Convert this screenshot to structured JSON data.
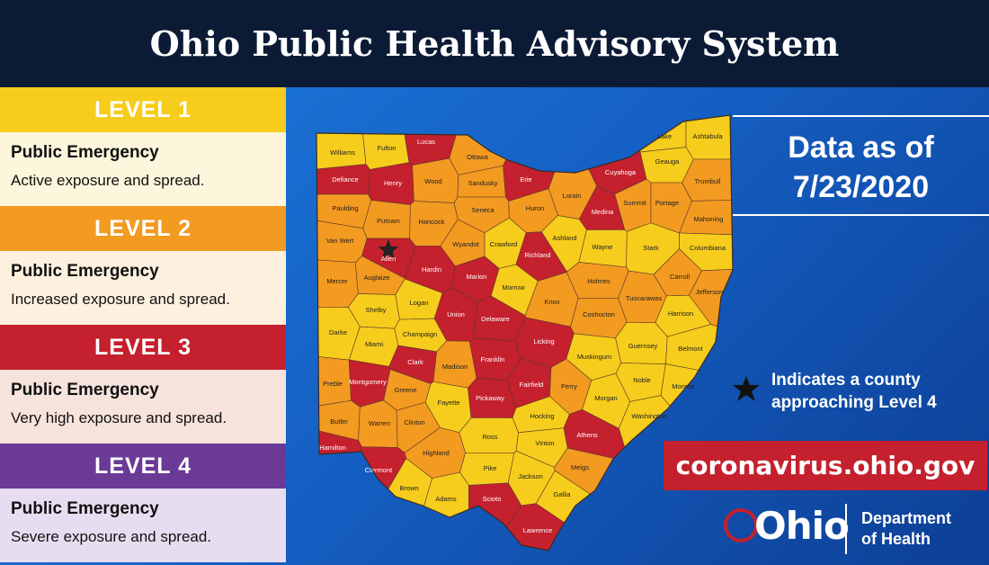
{
  "title": "Ohio Public Health Advisory System",
  "levels": [
    {
      "label": "LEVEL 1",
      "heading": "Public Emergency",
      "description": "Active exposure and spread.",
      "color": "#f6cd1c",
      "tint": "#fdf6dc"
    },
    {
      "label": "LEVEL 2",
      "heading": "Public Emergency",
      "description": "Increased exposure and spread.",
      "color": "#f39a21",
      "tint": "#fdf0de"
    },
    {
      "label": "LEVEL 3",
      "heading": "Public Emergency",
      "description": "Very high exposure and spread.",
      "color": "#c4202e",
      "tint": "#f5e3dc"
    },
    {
      "label": "LEVEL 4",
      "heading": "Public Emergency",
      "description": "Severe exposure and spread.",
      "color": "#6b3a96",
      "tint": "#e6def0"
    }
  ],
  "counties": [
    {
      "name": "Williams",
      "level": 1
    },
    {
      "name": "Fulton",
      "level": 1
    },
    {
      "name": "Lucas",
      "level": 3
    },
    {
      "name": "Ottawa",
      "level": 2
    },
    {
      "name": "Erie",
      "level": 3
    },
    {
      "name": "Lorain",
      "level": 2
    },
    {
      "name": "Cuyahoga",
      "level": 3
    },
    {
      "name": "Lake",
      "level": 1
    },
    {
      "name": "Geauga",
      "level": 1
    },
    {
      "name": "Ashtabula",
      "level": 1
    },
    {
      "name": "Defiance",
      "level": 3
    },
    {
      "name": "Henry",
      "level": 3
    },
    {
      "name": "Wood",
      "level": 2
    },
    {
      "name": "Sandusky",
      "level": 2
    },
    {
      "name": "Huron",
      "level": 2
    },
    {
      "name": "Medina",
      "level": 3
    },
    {
      "name": "Summit",
      "level": 2
    },
    {
      "name": "Portage",
      "level": 2
    },
    {
      "name": "Trumbull",
      "level": 2
    },
    {
      "name": "Paulding",
      "level": 2
    },
    {
      "name": "Putnam",
      "level": 2
    },
    {
      "name": "Hancock",
      "level": 2
    },
    {
      "name": "Seneca",
      "level": 2
    },
    {
      "name": "Ashland",
      "level": 1
    },
    {
      "name": "Wayne",
      "level": 1
    },
    {
      "name": "Stark",
      "level": 1
    },
    {
      "name": "Mahoning",
      "level": 2
    },
    {
      "name": "Columbiana",
      "level": 1
    },
    {
      "name": "Van Wert",
      "level": 2
    },
    {
      "name": "Allen",
      "level": 3,
      "approaching_level_4": true
    },
    {
      "name": "Wyandot",
      "level": 2
    },
    {
      "name": "Crawford",
      "level": 1
    },
    {
      "name": "Richland",
      "level": 3
    },
    {
      "name": "Hardin",
      "level": 3
    },
    {
      "name": "Marion",
      "level": 3
    },
    {
      "name": "Morrow",
      "level": 1
    },
    {
      "name": "Holmes",
      "level": 2
    },
    {
      "name": "Tuscarawas",
      "level": 2
    },
    {
      "name": "Carroll",
      "level": 2
    },
    {
      "name": "Jefferson",
      "level": 2
    },
    {
      "name": "Mercer",
      "level": 2
    },
    {
      "name": "Auglaize",
      "level": 2
    },
    {
      "name": "Knox",
      "level": 2
    },
    {
      "name": "Logan",
      "level": 1
    },
    {
      "name": "Shelby",
      "level": 1
    },
    {
      "name": "Union",
      "level": 3
    },
    {
      "name": "Delaware",
      "level": 3
    },
    {
      "name": "Coshocton",
      "level": 2
    },
    {
      "name": "Harrison",
      "level": 1
    },
    {
      "name": "Darke",
      "level": 1
    },
    {
      "name": "Miami",
      "level": 1
    },
    {
      "name": "Champaign",
      "level": 1
    },
    {
      "name": "Licking",
      "level": 3
    },
    {
      "name": "Muskingum",
      "level": 1
    },
    {
      "name": "Guernsey",
      "level": 1
    },
    {
      "name": "Belmont",
      "level": 1
    },
    {
      "name": "Clark",
      "level": 3
    },
    {
      "name": "Madison",
      "level": 2
    },
    {
      "name": "Franklin",
      "level": 3
    },
    {
      "name": "Noble",
      "level": 1
    },
    {
      "name": "Monroe",
      "level": 1
    },
    {
      "name": "Preble",
      "level": 2
    },
    {
      "name": "Montgomery",
      "level": 3
    },
    {
      "name": "Greene",
      "level": 2
    },
    {
      "name": "Fayette",
      "level": 1
    },
    {
      "name": "Pickaway",
      "level": 3
    },
    {
      "name": "Fairfield",
      "level": 3
    },
    {
      "name": "Perry",
      "level": 2
    },
    {
      "name": "Morgan",
      "level": 1
    },
    {
      "name": "Washington",
      "level": 1
    },
    {
      "name": "Butler",
      "level": 2
    },
    {
      "name": "Warren",
      "level": 2
    },
    {
      "name": "Clinton",
      "level": 2
    },
    {
      "name": "Hocking",
      "level": 1
    },
    {
      "name": "Ross",
      "level": 1
    },
    {
      "name": "Vinton",
      "level": 1
    },
    {
      "name": "Athens",
      "level": 3
    },
    {
      "name": "Hamilton",
      "level": 3
    },
    {
      "name": "Clermont",
      "level": 3
    },
    {
      "name": "Highland",
      "level": 2
    },
    {
      "name": "Pike",
      "level": 1
    },
    {
      "name": "Jackson",
      "level": 1
    },
    {
      "name": "Meigs",
      "level": 2
    },
    {
      "name": "Brown",
      "level": 1
    },
    {
      "name": "Adams",
      "level": 1
    },
    {
      "name": "Scioto",
      "level": 3
    },
    {
      "name": "Gallia",
      "level": 1
    },
    {
      "name": "Lawrence",
      "level": 3
    }
  ],
  "date_line1": "Data as of",
  "date_line2": "7/23/2020",
  "star_note": "Indicates a county approaching Level 4",
  "website": "coronavirus.ohio.gov",
  "logo": "Ohio",
  "department_line1": "Department",
  "department_line2": "of Health"
}
